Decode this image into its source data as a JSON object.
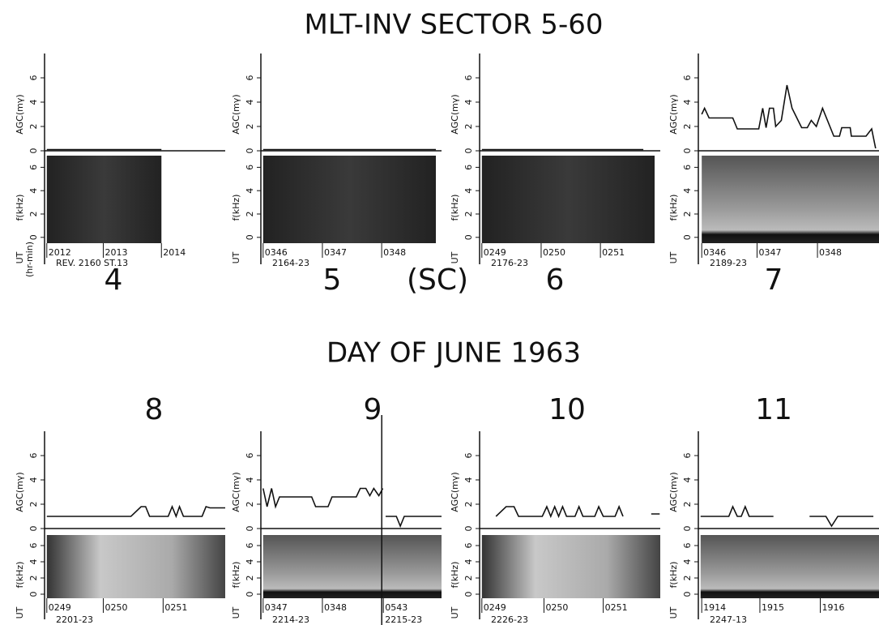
{
  "header": {
    "title": "MLT-INV SECTOR 5-60",
    "subtitle": "DAY OF JUNE 1963"
  },
  "chart_data": [
    {
      "type": "line",
      "title": "4",
      "ylabel": "AGC(mγ)",
      "flabel": "f(kHz)",
      "xlabel": "UT",
      "xlabel_unit": "(hr-min)",
      "rev": [
        "REV. 2160  ST.13"
      ],
      "xlim": [
        0,
        3.2
      ],
      "xticks": [
        {
          "value": 0.04,
          "label": "2012"
        },
        {
          "value": 1.04,
          "label": "2013"
        },
        {
          "value": 2.07,
          "label": "2014"
        }
      ],
      "ylim": [
        0,
        8
      ],
      "yticks": [
        0,
        2,
        4,
        6
      ],
      "flim": [
        -0.5,
        7
      ],
      "fticks": [
        0,
        2,
        4,
        6
      ],
      "spec_x": [
        0.04,
        2.07
      ],
      "x": [
        0.04,
        2.07
      ],
      "values": [
        0.1,
        0.1
      ],
      "color": "#111"
    },
    {
      "type": "line",
      "title": "5",
      "note": "(SC)",
      "ylabel": "AGC(mγ)",
      "flabel": "f(kHz)",
      "xlabel": "UT",
      "rev": [
        "2164-23"
      ],
      "xlim": [
        0,
        3.2
      ],
      "xticks": [
        {
          "value": 0.04,
          "label": "0346"
        },
        {
          "value": 1.09,
          "label": "0347"
        },
        {
          "value": 2.14,
          "label": "0348"
        }
      ],
      "ylim": [
        0,
        8
      ],
      "yticks": [
        0,
        2,
        4,
        6
      ],
      "flim": [
        -0.5,
        7
      ],
      "fticks": [
        0,
        2,
        4,
        6
      ],
      "spec_x": [
        0.04,
        3.1
      ],
      "x": [
        0.04,
        3.1
      ],
      "values": [
        0.1,
        0.1
      ],
      "color": "#111"
    },
    {
      "type": "line",
      "title": "6",
      "ylabel": "AGC(mγ)",
      "flabel": "f(kHz)",
      "xlabel": "UT",
      "rev": [
        "2176-23"
      ],
      "xlim": [
        0,
        3.2
      ],
      "xticks": [
        {
          "value": 0.04,
          "label": "0249"
        },
        {
          "value": 1.09,
          "label": "0250"
        },
        {
          "value": 2.14,
          "label": "0251"
        }
      ],
      "ylim": [
        0,
        8
      ],
      "yticks": [
        0,
        2,
        4,
        6
      ],
      "flim": [
        -0.5,
        7
      ],
      "fticks": [
        0,
        2,
        4,
        6
      ],
      "spec_x": [
        0.04,
        3.1
      ],
      "x": [
        0.04,
        2.9
      ],
      "values": [
        0.1,
        0.1
      ],
      "color": "#111"
    },
    {
      "type": "line",
      "title": "7",
      "ylabel": "AGC(mγ)",
      "flabel": "f(kHz)",
      "xlabel": "UT",
      "rev": [
        "2189-23"
      ],
      "xlim": [
        0,
        3.2
      ],
      "xticks": [
        {
          "value": 0.06,
          "label": "0346"
        },
        {
          "value": 1.04,
          "label": "0347"
        },
        {
          "value": 2.11,
          "label": "0348"
        }
      ],
      "ylim": [
        0,
        8
      ],
      "yticks": [
        0,
        2,
        4,
        6
      ],
      "flim": [
        -0.5,
        7
      ],
      "fticks": [
        0,
        2,
        4,
        6
      ],
      "spec_x": [
        0.06,
        3.2
      ],
      "x": [
        0.06,
        0.11,
        0.19,
        0.61,
        0.69,
        1.07,
        1.14,
        1.2,
        1.26,
        1.33,
        1.37,
        1.47,
        1.57,
        1.66,
        1.83,
        1.93,
        2,
        2.09,
        2.2,
        2.4,
        2.5,
        2.54,
        2.69,
        2.71,
        2.97,
        3.07,
        3.14
      ],
      "values": [
        3,
        3.5,
        2.7,
        2.7,
        1.8,
        1.8,
        3.5,
        1.9,
        3.5,
        3.5,
        2,
        2.5,
        5.4,
        3.5,
        1.9,
        1.9,
        2.5,
        2,
        3.5,
        1.2,
        1.2,
        1.9,
        1.9,
        1.2,
        1.2,
        1.8,
        0.2
      ],
      "color": "#111"
    },
    {
      "type": "line",
      "title": "8",
      "ylabel": "AGC(mγ)",
      "flabel": "f(kHz)",
      "xlabel": "UT",
      "rev": [
        "2201-23"
      ],
      "xlim": [
        0,
        3.2
      ],
      "xticks": [
        {
          "value": 0.04,
          "label": "0249"
        },
        {
          "value": 1.04,
          "label": "0250"
        },
        {
          "value": 2.1,
          "label": "0251"
        }
      ],
      "ylim": [
        0,
        8
      ],
      "yticks": [
        0,
        2,
        4,
        6
      ],
      "flim": [
        -0.5,
        7.3
      ],
      "fticks": [
        0,
        2,
        4,
        6
      ],
      "spec_x": [
        0.04,
        3.2
      ],
      "x": [
        0.04,
        1.53,
        1.71,
        1.79,
        1.86,
        2.19,
        2.26,
        2.33,
        2.39,
        2.46,
        2.79,
        2.86,
        2.93,
        3.2
      ],
      "values": [
        1,
        1,
        1.8,
        1.8,
        1,
        1,
        1.8,
        1,
        1.8,
        1,
        1,
        1.8,
        1.7,
        1.7
      ],
      "color": "#111"
    },
    {
      "type": "line",
      "title": "9",
      "ylabel": "AGC(mγ)",
      "flabel": "f(kHz)",
      "xlabel": "UT",
      "rev": [
        "2214-23",
        "2215-23"
      ],
      "xlim": [
        0,
        3.2
      ],
      "xticks": [
        {
          "value": 0.04,
          "label": "0347"
        },
        {
          "value": 1.09,
          "label": "0348"
        },
        {
          "value": 2.17,
          "label": "0543"
        }
      ],
      "ylim": [
        0,
        8
      ],
      "yticks": [
        0,
        2,
        4,
        6
      ],
      "flim": [
        -0.5,
        7.3
      ],
      "fticks": [
        0,
        2,
        4,
        6
      ],
      "spec_x": [
        0.04,
        3.2
      ],
      "x": [
        0.04,
        0.11,
        0.19,
        0.26,
        0.33,
        0.9,
        0.97,
        1.19,
        1.26,
        1.69,
        1.76,
        1.86,
        1.93,
        2,
        2.09,
        2.16,
        null,
        2.21,
        2.4,
        2.47,
        2.54,
        3.2
      ],
      "values": [
        3.3,
        1.8,
        3.3,
        1.8,
        2.6,
        2.6,
        1.8,
        1.8,
        2.6,
        2.6,
        3.3,
        3.3,
        2.7,
        3.3,
        2.7,
        3.3,
        null,
        1,
        1,
        0.2,
        1,
        1
      ],
      "color": "#111"
    },
    {
      "type": "line",
      "title": "10",
      "ylabel": "AGC(mγ)",
      "flabel": "f(kHz)",
      "xlabel": "UT",
      "rev": [
        "2226-23"
      ],
      "xlim": [
        0,
        3.2
      ],
      "xticks": [
        {
          "value": 0.04,
          "label": "0249"
        },
        {
          "value": 1.14,
          "label": "0250"
        },
        {
          "value": 2.19,
          "label": "0251"
        }
      ],
      "ylim": [
        0,
        8
      ],
      "yticks": [
        0,
        2,
        4,
        6
      ],
      "flim": [
        -0.5,
        7.3
      ],
      "fticks": [
        0,
        2,
        4,
        6
      ],
      "spec_x": [
        0.04,
        3.2
      ],
      "x": [
        0.29,
        0.47,
        0.61,
        0.69,
        1.11,
        1.19,
        1.26,
        1.33,
        1.4,
        1.47,
        1.54,
        1.69,
        1.76,
        1.83,
        2.04,
        2.11,
        2.19,
        2.26,
        2.4,
        2.47,
        2.54,
        null,
        3.04,
        3.19
      ],
      "values": [
        1,
        1.8,
        1.8,
        1,
        1,
        1.8,
        1,
        1.8,
        1,
        1.8,
        1,
        1,
        1.8,
        1,
        1,
        1.8,
        1,
        1,
        1,
        1.8,
        1,
        null,
        1.2,
        1.2
      ],
      "color": "#111"
    },
    {
      "type": "line",
      "title": "11",
      "ylabel": "AGC(mγ)",
      "flabel": "f(kHz)",
      "xlabel": "UT",
      "rev": [
        "2247-13"
      ],
      "xlim": [
        0,
        3.2
      ],
      "xticks": [
        {
          "value": 0.06,
          "label": "1914"
        },
        {
          "value": 1.09,
          "label": "1915"
        },
        {
          "value": 2.16,
          "label": "1916"
        }
      ],
      "ylim": [
        0,
        8
      ],
      "yticks": [
        0,
        2,
        4,
        6
      ],
      "flim": [
        -0.5,
        7.3
      ],
      "fticks": [
        0,
        2,
        4,
        6
      ],
      "spec_x": [
        0.04,
        3.2
      ],
      "x": [
        0.04,
        0.54,
        0.61,
        0.69,
        0.76,
        0.83,
        0.9,
        1.33,
        null,
        1.97,
        2.26,
        2.36,
        2.47,
        3.1
      ],
      "values": [
        1,
        1,
        1.8,
        1,
        1,
        1.8,
        1,
        1,
        null,
        1,
        1,
        0.2,
        1,
        1
      ],
      "color": "#111"
    }
  ]
}
